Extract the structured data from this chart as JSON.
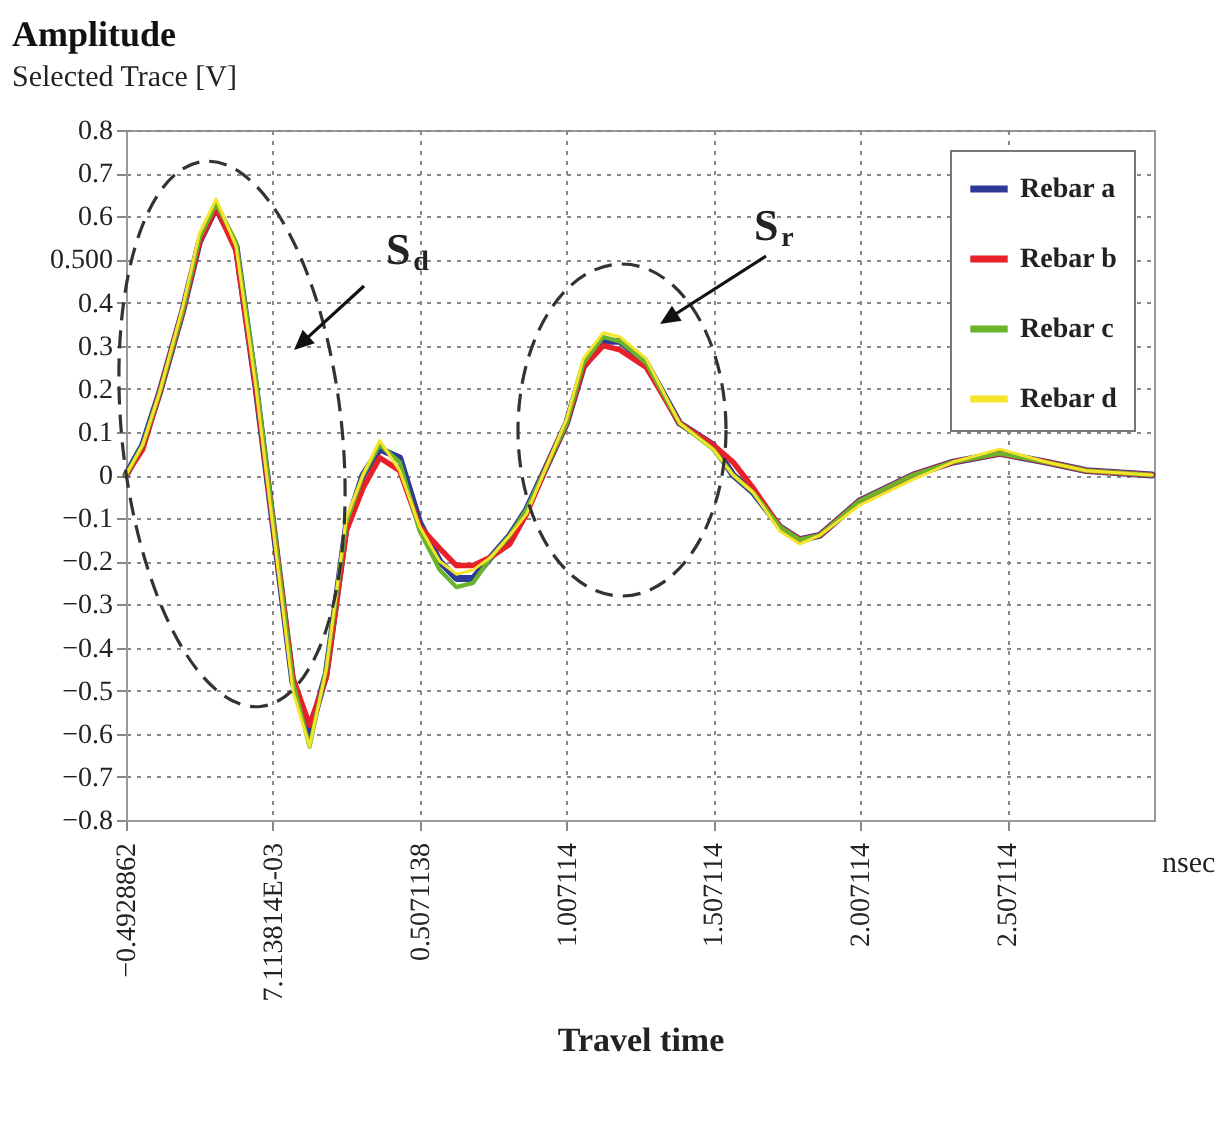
{
  "chart_data": {
    "type": "line",
    "title": "Amplitude",
    "subtitle": "Selected Trace [V]",
    "xlabel": "Travel time",
    "x": [
      -0.4928,
      -0.436,
      -0.379,
      -0.3,
      -0.243,
      -0.186,
      -0.118,
      -0.05,
      0.075,
      0.132,
      0.189,
      0.257,
      0.314,
      0.371,
      0.439,
      0.507,
      0.575,
      0.632,
      0.689,
      0.75,
      0.814,
      0.871,
      0.939,
      1.007,
      1.064,
      1.132,
      1.189,
      1.278,
      1.392,
      1.506,
      1.574,
      1.642,
      1.733,
      1.801,
      1.869,
      2.005,
      2.187,
      2.323,
      2.482,
      2.64,
      2.777,
      3.0
    ],
    "series": [
      {
        "name": "Rebar a",
        "color": "#2e3a9a",
        "values": [
          0,
          0.07,
          0.19,
          0.38,
          0.54,
          0.62,
          0.53,
          0.2,
          -0.48,
          -0.6,
          -0.46,
          -0.12,
          0.0,
          0.06,
          0.04,
          -0.11,
          -0.2,
          -0.24,
          -0.24,
          -0.19,
          -0.14,
          -0.08,
          0.02,
          0.12,
          0.25,
          0.31,
          0.31,
          0.26,
          0.12,
          0.07,
          0.0,
          -0.04,
          -0.12,
          -0.15,
          -0.14,
          -0.06,
          0.0,
          0.03,
          0.05,
          0.03,
          0.01,
          0.0
        ]
      },
      {
        "name": "Rebar b",
        "color": "#e8202a",
        "values": [
          0,
          0.06,
          0.19,
          0.38,
          0.54,
          0.62,
          0.52,
          0.2,
          -0.47,
          -0.58,
          -0.47,
          -0.13,
          -0.03,
          0.04,
          0.01,
          -0.12,
          -0.17,
          -0.21,
          -0.21,
          -0.19,
          -0.16,
          -0.09,
          0.02,
          0.12,
          0.25,
          0.3,
          0.29,
          0.25,
          0.12,
          0.07,
          0.03,
          -0.03,
          -0.12,
          -0.15,
          -0.14,
          -0.06,
          0.0,
          0.03,
          0.05,
          0.03,
          0.01,
          0.0
        ]
      },
      {
        "name": "Rebar c",
        "color": "#6ab42c",
        "values": [
          0,
          0.07,
          0.19,
          0.38,
          0.55,
          0.63,
          0.54,
          0.22,
          -0.48,
          -0.63,
          -0.45,
          -0.11,
          0.0,
          0.07,
          0.03,
          -0.13,
          -0.22,
          -0.26,
          -0.25,
          -0.19,
          -0.14,
          -0.08,
          0.02,
          0.12,
          0.26,
          0.32,
          0.31,
          0.26,
          0.12,
          0.06,
          0.0,
          -0.04,
          -0.12,
          -0.15,
          -0.14,
          -0.06,
          0.0,
          0.03,
          0.05,
          0.03,
          0.01,
          0.0
        ]
      },
      {
        "name": "Rebar d",
        "color": "#f5e52a",
        "values": [
          0,
          0.07,
          0.19,
          0.39,
          0.56,
          0.64,
          0.53,
          0.2,
          -0.5,
          -0.63,
          -0.45,
          -0.1,
          0.0,
          0.08,
          0.01,
          -0.12,
          -0.2,
          -0.23,
          -0.22,
          -0.19,
          -0.14,
          -0.09,
          0.02,
          0.13,
          0.27,
          0.33,
          0.32,
          0.27,
          0.12,
          0.06,
          0.0,
          -0.04,
          -0.13,
          -0.16,
          -0.14,
          -0.07,
          -0.01,
          0.03,
          0.06,
          0.03,
          0.01,
          0.0
        ]
      }
    ],
    "xlim": [
      -0.4928862,
      3.0071138
    ],
    "xticks": [
      {
        "value": -0.4928862,
        "label": "−0.4928862"
      },
      {
        "value": 0.007113814,
        "label": "7.113814E-03"
      },
      0.5071138,
      1.007114,
      1.507114,
      2.007114,
      2.507114
    ],
    "ylim": [
      -0.8,
      0.8
    ],
    "yticks": [
      {
        "value": -0.8,
        "label": "−0.8"
      },
      {
        "value": -0.7,
        "label": "−0.7"
      },
      {
        "value": -0.6,
        "label": "−0.6"
      },
      {
        "value": -0.5,
        "label": "−0.5"
      },
      {
        "value": -0.4,
        "label": "−0.4"
      },
      {
        "value": -0.3,
        "label": "−0.3"
      },
      {
        "value": -0.2,
        "label": "−0.2"
      },
      {
        "value": -0.1,
        "label": "−0.1"
      },
      0,
      0.1,
      0.2,
      0.3,
      0.4,
      {
        "value": 0.5,
        "label": "0.500"
      },
      0.6,
      0.7,
      0.8
    ],
    "annotations": [
      "S$_{d}$",
      "S$_{r}$",
      "nsec"
    ],
    "grid": true,
    "legend": "top right",
    "marker": "none",
    "line_style": "solid"
  }
}
